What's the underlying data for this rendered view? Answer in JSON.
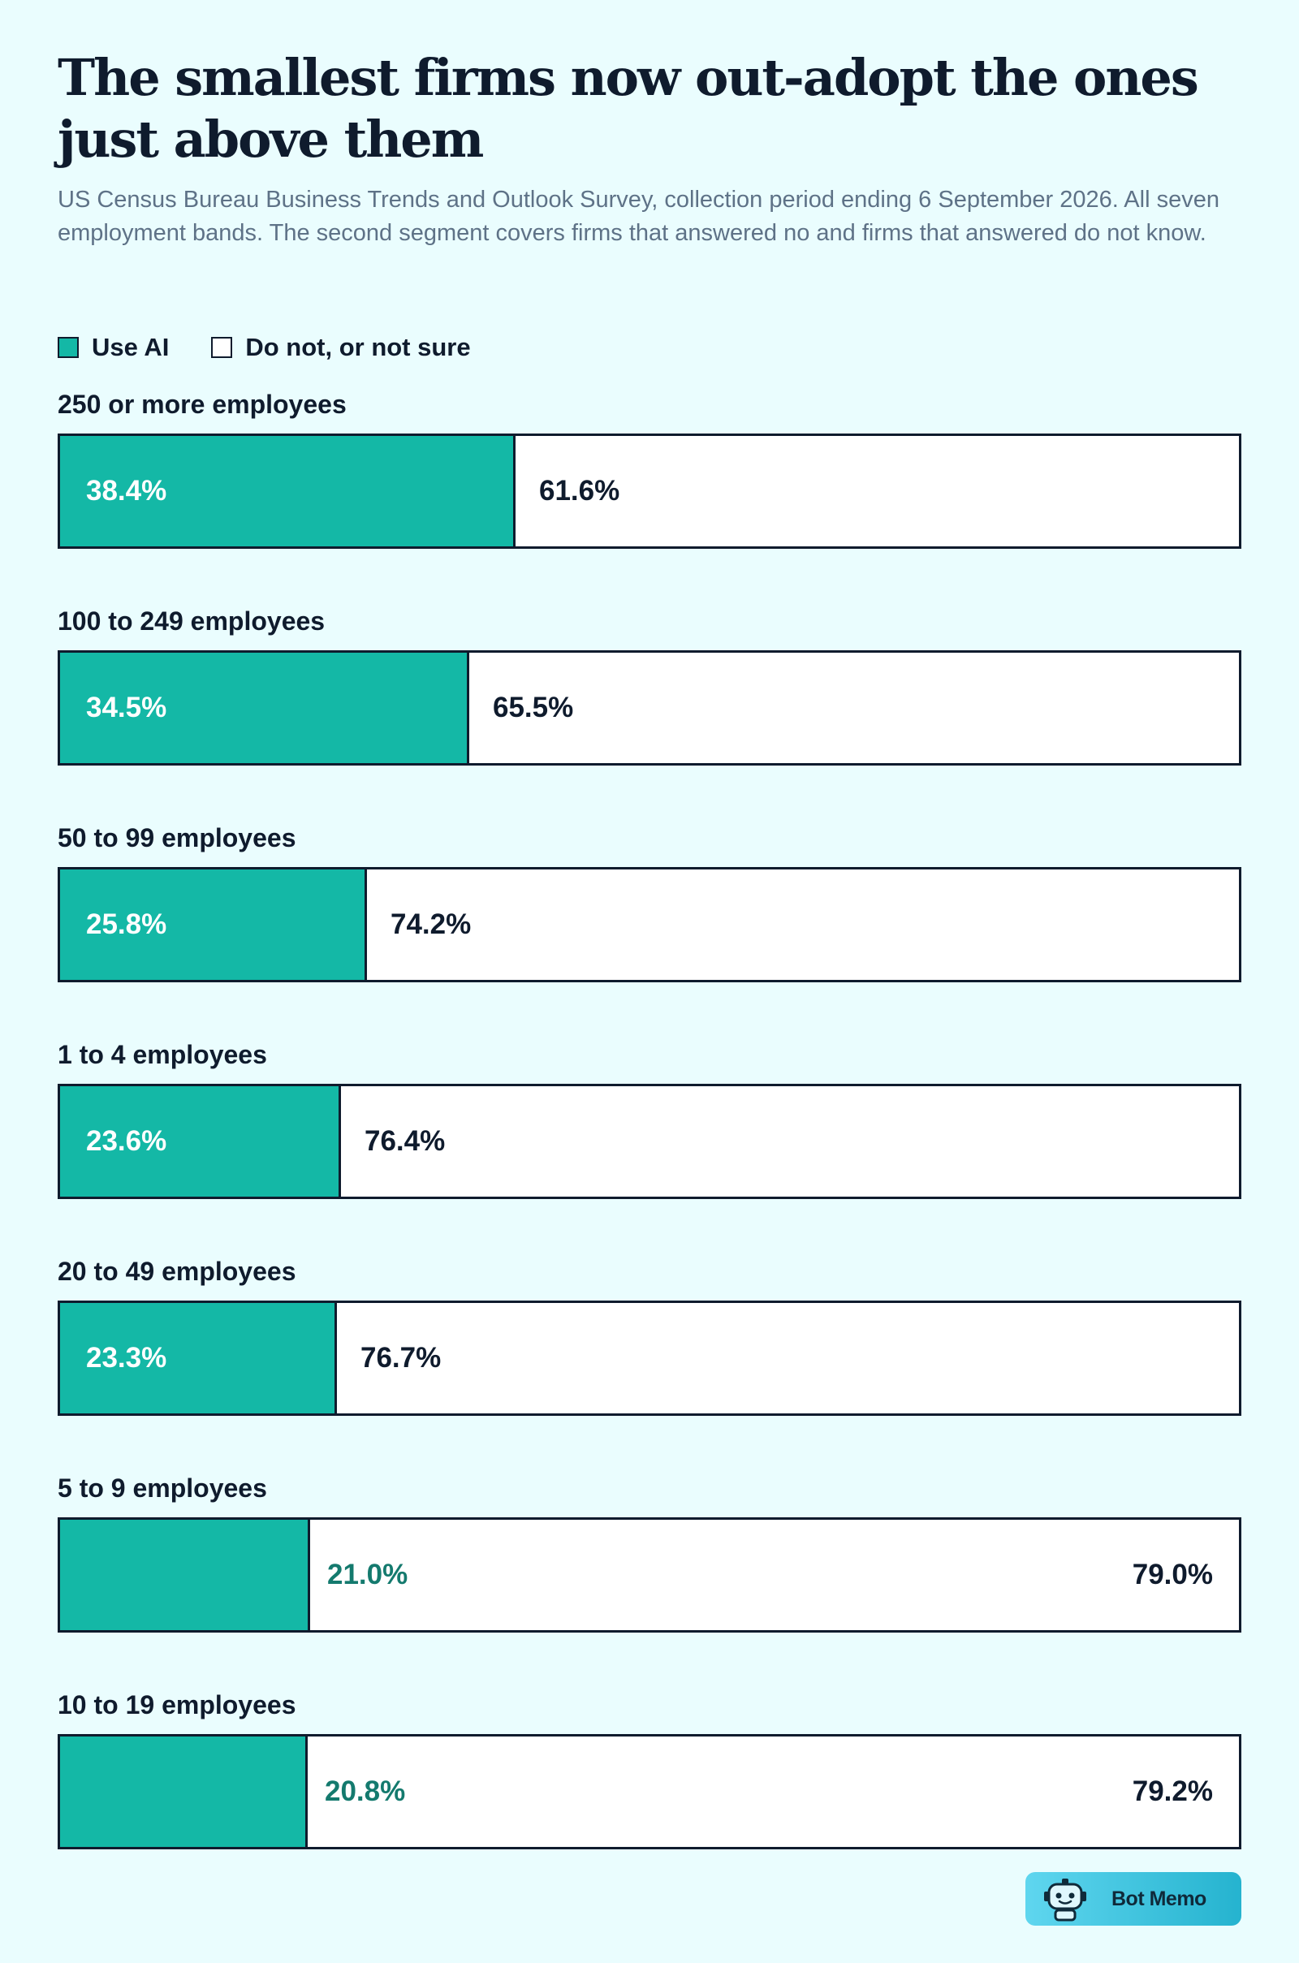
{
  "title": "The smallest firms now out-adopt the ones just above them",
  "subtitle": "US Census Bureau Business Trends and Outlook Survey, collection period ending 6 September 2026. All seven employment bands. The second segment covers firms that answered no and firms that answered do not know.",
  "legend": {
    "use": "Use AI",
    "not": "Do not, or not sure"
  },
  "colors": {
    "use": "#14b8a6",
    "not": "#ffffff",
    "outline": "#0f1b2d",
    "background": "#eafdfe"
  },
  "brand": {
    "label": "Bot Memo",
    "icon": "robot-icon"
  },
  "chart_data": {
    "type": "bar",
    "orientation": "horizontal",
    "stacked": true,
    "title": "The smallest firms now out-adopt the ones just above them",
    "subtitle": "US Census Bureau Business Trends and Outlook Survey, collection period ending 6 September 2026. All seven employment bands. The second segment covers firms that answered no and firms that answered do not know.",
    "xlim": [
      0,
      100
    ],
    "legend": "top-left",
    "grid": false,
    "categories": [
      "250 or more employees",
      "100 to 249 employees",
      "50 to 99 employees",
      "1 to 4 employees",
      "20 to 49 employees",
      "5 to 9 employees",
      "10 to 19 employees"
    ],
    "series": [
      {
        "name": "Use AI",
        "values": [
          38.4,
          34.5,
          25.8,
          23.6,
          23.3,
          21.0,
          20.8
        ],
        "labels": [
          "38.4%",
          "34.5%",
          "25.8%",
          "23.6%",
          "23.3%",
          "21.0%",
          "20.8%"
        ]
      },
      {
        "name": "Do not, or not sure",
        "values": [
          61.6,
          65.5,
          74.2,
          76.4,
          76.7,
          79.0,
          79.2
        ],
        "labels": [
          "61.6%",
          "65.5%",
          "74.2%",
          "76.4%",
          "76.7%",
          "79.0%",
          "79.2%"
        ]
      }
    ]
  }
}
